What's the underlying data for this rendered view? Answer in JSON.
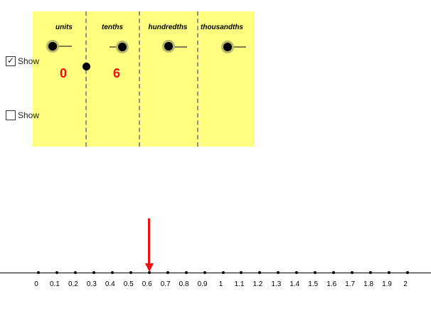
{
  "place_value_panel": {
    "columns": [
      {
        "title": "units",
        "digit": "0",
        "slider_level": 0
      },
      {
        "title": "tenths",
        "digit": "6",
        "slider_level": 0.6
      },
      {
        "title": "hundredths",
        "digit": "",
        "slider_level": 0
      },
      {
        "title": "thousandths",
        "digit": "",
        "slider_level": 0
      }
    ]
  },
  "checkboxes": [
    {
      "label": "Show",
      "checked": true
    },
    {
      "label": "Show",
      "checked": false
    }
  ],
  "number_line": {
    "ticks": [
      "0",
      "0.1",
      "0.2",
      "0.3",
      "0.4",
      "0.5",
      "0.6",
      "0.7",
      "0.8",
      "0.9",
      "1",
      "1.1",
      "1.2",
      "1.3",
      "1.4",
      "1.5",
      "1.6",
      "1.7",
      "1.8",
      "1.9",
      "2"
    ],
    "marker_value": 0.6,
    "marker_color": "#ee1111"
  },
  "colors": {
    "panel": "#ffff80",
    "digit": "#ee1111"
  },
  "icons": {
    "check": "✓"
  }
}
